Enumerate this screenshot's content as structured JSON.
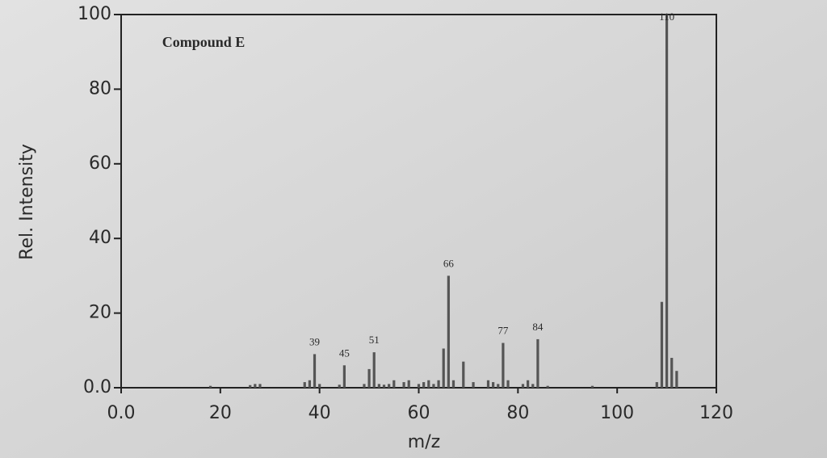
{
  "chart_data": {
    "type": "bar",
    "title": "Compound E",
    "x_label": "m/z",
    "y_label": "Rel. Intensity",
    "x": [
      18,
      26,
      27,
      28,
      37,
      38,
      39,
      40,
      44,
      45,
      49,
      50,
      51,
      52,
      53,
      54,
      55,
      57,
      58,
      60,
      61,
      62,
      63,
      64,
      65,
      66,
      67,
      69,
      71,
      74,
      75,
      76,
      77,
      78,
      81,
      82,
      83,
      84,
      86,
      95,
      108,
      109,
      110,
      111,
      112
    ],
    "values": [
      0.5,
      0.7,
      1,
      1,
      1.5,
      2,
      9,
      1,
      0.8,
      6,
      1,
      5,
      9.5,
      1,
      0.8,
      1,
      2,
      1.5,
      2,
      1,
      1.5,
      2,
      1,
      2,
      10.5,
      30,
      2,
      7,
      1.5,
      2,
      1.5,
      1,
      12,
      2,
      1,
      2,
      1,
      13,
      0.5,
      0.5,
      1.5,
      23,
      100,
      8,
      4.5
    ],
    "color": "#555555",
    "annotations": [
      39,
      45,
      51,
      66,
      77,
      84,
      110
    ],
    "xlim": [
      0,
      120
    ],
    "xticks": [
      {
        "value": 0,
        "label": "0.0"
      },
      20,
      40,
      60,
      80,
      100,
      120
    ],
    "ylim": [
      0,
      100
    ],
    "yticks": [
      {
        "value": 0,
        "label": "0.0"
      },
      20,
      40,
      60,
      80,
      100
    ]
  }
}
